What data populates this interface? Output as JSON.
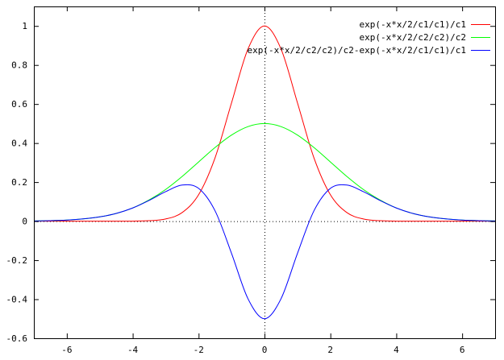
{
  "chart_data": {
    "type": "line",
    "title": "",
    "xlabel": "",
    "ylabel": "",
    "xlim": [
      -7,
      7
    ],
    "ylim": [
      -0.6,
      1.1
    ],
    "grid": false,
    "zero_axes": true,
    "legend_position": "top-right",
    "x_ticks": [
      -6,
      -4,
      -2,
      0,
      2,
      4,
      6
    ],
    "x_tick_labels": [
      "-6",
      "-4",
      "-2",
      "0",
      "2",
      "4",
      "6"
    ],
    "y_ticks": [
      -0.6,
      -0.4,
      -0.2,
      0,
      0.2,
      0.4,
      0.6,
      0.8,
      1
    ],
    "y_tick_labels": [
      "-0.6",
      "-0.4",
      "-0.2",
      "0",
      "0.2",
      "0.4",
      "0.6",
      "0.8",
      "1"
    ],
    "series": [
      {
        "name": "exp(-x*x/2/c1/c1)/c1",
        "color": "#ff0000",
        "x": [
          -7,
          -6.5,
          -6,
          -5.5,
          -5,
          -4.5,
          -4,
          -3.5,
          -3,
          -2.5,
          -2,
          -1.5,
          -1,
          -0.5,
          0,
          0.5,
          1,
          1.5,
          2,
          2.5,
          3,
          3.5,
          4,
          4.5,
          5,
          5.5,
          6,
          6.5,
          7
        ],
        "y": [
          0,
          0,
          0,
          0,
          0,
          0,
          0,
          0.0022,
          0.0111,
          0.0439,
          0.1353,
          0.3247,
          0.6065,
          0.8825,
          1,
          0.8825,
          0.6065,
          0.3247,
          0.1353,
          0.0439,
          0.0111,
          0.0022,
          0,
          0,
          0,
          0,
          0,
          0,
          0
        ]
      },
      {
        "name": "exp(-x*x/2/c2/c2)/c2",
        "color": "#00ff00",
        "x": [
          -7,
          -6.5,
          -6,
          -5.5,
          -5,
          -4.5,
          -4,
          -3.5,
          -3,
          -2.5,
          -2,
          -1.5,
          -1,
          -0.5,
          0,
          0.5,
          1,
          1.5,
          2,
          2.5,
          3,
          3.5,
          4,
          4.5,
          5,
          5.5,
          6,
          6.5,
          7
        ],
        "y": [
          0.0011,
          0.0026,
          0.0056,
          0.0115,
          0.0219,
          0.0397,
          0.0677,
          0.1087,
          0.1623,
          0.2288,
          0.3033,
          0.3774,
          0.4412,
          0.4845,
          0.5,
          0.4845,
          0.4412,
          0.3774,
          0.3033,
          0.2288,
          0.1623,
          0.1087,
          0.0677,
          0.0397,
          0.0219,
          0.0115,
          0.0056,
          0.0026,
          0.0011
        ]
      },
      {
        "name": "exp(-x*x/2/c2/c2)/c2-exp(-x*x/2/c1/c1)/c1",
        "color": "#0000ff",
        "x": [
          -7,
          -6.5,
          -6,
          -5.5,
          -5,
          -4.5,
          -4,
          -3.5,
          -3,
          -2.5,
          -2,
          -1.5,
          -1,
          -0.5,
          0,
          0.5,
          1,
          1.5,
          2,
          2.5,
          3,
          3.5,
          4,
          4.5,
          5,
          5.5,
          6,
          6.5,
          7
        ],
        "y": [
          0.0011,
          0.0026,
          0.0056,
          0.0115,
          0.0219,
          0.0397,
          0.0674,
          0.1065,
          0.1512,
          0.1849,
          0.168,
          0.0527,
          -0.1653,
          -0.398,
          -0.5,
          -0.398,
          -0.1653,
          0.0527,
          0.168,
          0.1849,
          0.1512,
          0.1065,
          0.0674,
          0.0397,
          0.0219,
          0.0115,
          0.0056,
          0.0026,
          0.0011
        ]
      }
    ]
  }
}
